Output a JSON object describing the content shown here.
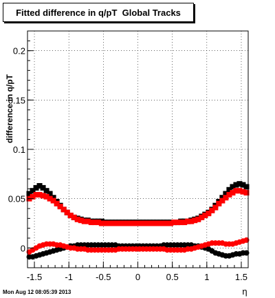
{
  "footer": {
    "timestamp": "Mon Aug 12 08:05:39 2013"
  },
  "chart_data": {
    "type": "scatter",
    "title": "Fitted difference in q/pT  Global Tracks",
    "xlabel": "η",
    "ylabel": "difference in q/pT",
    "xlim": [
      -1.6,
      1.6
    ],
    "ylim": [
      -0.02,
      0.22
    ],
    "xticks": [
      -1.5,
      -1,
      -0.5,
      0,
      0.5,
      1,
      1.5
    ],
    "xtick_labels": [
      "-1.5",
      "-1",
      "-0.5",
      "0",
      "0.5",
      "1",
      "1.5"
    ],
    "yticks": [
      0,
      0.05,
      0.1,
      0.15,
      0.2
    ],
    "ytick_labels": [
      "0",
      "0.05",
      "0.1",
      "0.15",
      "0.2"
    ],
    "grid": true,
    "legend": "none",
    "x": [
      -1.575,
      -1.525,
      -1.475,
      -1.425,
      -1.375,
      -1.325,
      -1.275,
      -1.225,
      -1.175,
      -1.125,
      -1.075,
      -1.025,
      -0.975,
      -0.925,
      -0.875,
      -0.825,
      -0.775,
      -0.725,
      -0.675,
      -0.625,
      -0.575,
      -0.525,
      -0.475,
      -0.425,
      -0.375,
      -0.325,
      -0.275,
      -0.225,
      -0.175,
      -0.125,
      -0.075,
      -0.025,
      0.025,
      0.075,
      0.125,
      0.175,
      0.225,
      0.275,
      0.325,
      0.375,
      0.425,
      0.475,
      0.525,
      0.575,
      0.625,
      0.675,
      0.725,
      0.775,
      0.825,
      0.875,
      0.925,
      0.975,
      1.025,
      1.075,
      1.125,
      1.175,
      1.225,
      1.275,
      1.325,
      1.375,
      1.425,
      1.475,
      1.525,
      1.575
    ],
    "series": [
      {
        "marker": "square",
        "color": "#000000",
        "values": [
          0.055,
          0.058,
          0.061,
          0.063,
          0.061,
          0.058,
          0.055,
          0.051,
          0.047,
          0.043,
          0.039,
          0.036,
          0.033,
          0.031,
          0.03,
          0.029,
          0.028,
          0.028,
          0.027,
          0.027,
          0.027,
          0.027,
          0.026,
          0.026,
          0.026,
          0.026,
          0.026,
          0.026,
          0.026,
          0.026,
          0.026,
          0.026,
          0.026,
          0.026,
          0.026,
          0.026,
          0.026,
          0.026,
          0.026,
          0.026,
          0.026,
          0.026,
          0.026,
          0.026,
          0.027,
          0.027,
          0.027,
          0.028,
          0.029,
          0.03,
          0.032,
          0.034,
          0.036,
          0.039,
          0.043,
          0.047,
          0.051,
          0.055,
          0.059,
          0.062,
          0.064,
          0.065,
          0.064,
          0.062
        ]
      },
      {
        "marker": "circle",
        "color": "#000000",
        "values": [
          -0.009,
          -0.009,
          -0.008,
          -0.007,
          -0.006,
          -0.005,
          -0.004,
          -0.003,
          -0.002,
          -0.001,
          0.0,
          0.001,
          0.002,
          0.002,
          0.003,
          0.003,
          0.003,
          0.003,
          0.003,
          0.003,
          0.003,
          0.003,
          0.003,
          0.003,
          0.003,
          0.003,
          0.002,
          0.002,
          0.002,
          0.002,
          0.002,
          0.002,
          0.002,
          0.002,
          0.002,
          0.002,
          0.002,
          0.002,
          0.002,
          0.003,
          0.003,
          0.003,
          0.003,
          0.003,
          0.003,
          0.003,
          0.003,
          0.003,
          0.002,
          0.002,
          0.001,
          0.0,
          -0.001,
          -0.003,
          -0.005,
          -0.006,
          -0.007,
          -0.008,
          -0.008,
          -0.007,
          -0.006,
          -0.006,
          -0.005,
          -0.005
        ]
      },
      {
        "marker": "square",
        "color": "#ff0000",
        "values": [
          0.05,
          0.052,
          0.054,
          0.054,
          0.053,
          0.052,
          0.05,
          0.048,
          0.045,
          0.042,
          0.039,
          0.036,
          0.033,
          0.031,
          0.029,
          0.028,
          0.027,
          0.027,
          0.026,
          0.026,
          0.026,
          0.025,
          0.025,
          0.025,
          0.025,
          0.025,
          0.025,
          0.025,
          0.025,
          0.025,
          0.025,
          0.025,
          0.025,
          0.025,
          0.025,
          0.025,
          0.025,
          0.025,
          0.025,
          0.025,
          0.025,
          0.025,
          0.026,
          0.026,
          0.026,
          0.026,
          0.027,
          0.027,
          0.028,
          0.029,
          0.031,
          0.033,
          0.035,
          0.038,
          0.041,
          0.045,
          0.048,
          0.051,
          0.054,
          0.056,
          0.058,
          0.058,
          0.057,
          0.056
        ]
      },
      {
        "marker": "circle",
        "color": "#ff0000",
        "values": [
          -0.004,
          -0.002,
          0.0,
          0.002,
          0.003,
          0.004,
          0.004,
          0.004,
          0.003,
          0.003,
          0.002,
          0.001,
          0.0,
          0.0,
          -0.001,
          -0.001,
          -0.001,
          -0.002,
          -0.002,
          -0.002,
          -0.002,
          -0.002,
          -0.002,
          -0.002,
          -0.002,
          -0.002,
          -0.001,
          -0.001,
          -0.001,
          -0.001,
          -0.001,
          -0.001,
          -0.001,
          -0.001,
          -0.001,
          -0.001,
          -0.001,
          -0.001,
          -0.001,
          -0.001,
          -0.002,
          -0.002,
          -0.002,
          -0.002,
          -0.002,
          -0.002,
          -0.001,
          -0.001,
          0.0,
          0.001,
          0.002,
          0.003,
          0.004,
          0.005,
          0.005,
          0.005,
          0.005,
          0.004,
          0.004,
          0.004,
          0.005,
          0.006,
          0.007,
          0.008
        ]
      }
    ]
  }
}
